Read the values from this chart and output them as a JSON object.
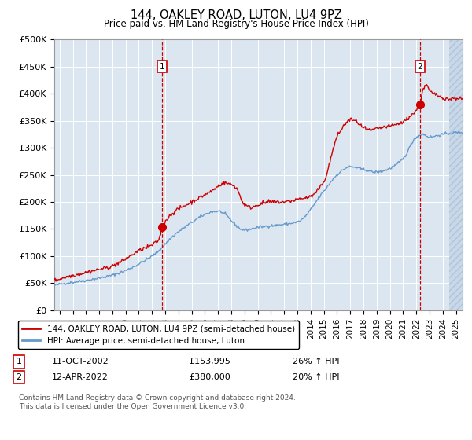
{
  "title": "144, OAKLEY ROAD, LUTON, LU4 9PZ",
  "subtitle": "Price paid vs. HM Land Registry's House Price Index (HPI)",
  "ylim": [
    0,
    500000
  ],
  "yticks": [
    0,
    50000,
    100000,
    150000,
    200000,
    250000,
    300000,
    350000,
    400000,
    450000,
    500000
  ],
  "ytick_labels": [
    "£0",
    "£50K",
    "£100K",
    "£150K",
    "£200K",
    "£250K",
    "£300K",
    "£350K",
    "£400K",
    "£450K",
    "£500K"
  ],
  "xlim_start": 1994.6,
  "xlim_end": 2025.5,
  "xtick_years": [
    1995,
    1996,
    1997,
    1998,
    1999,
    2000,
    2001,
    2002,
    2003,
    2004,
    2005,
    2006,
    2007,
    2008,
    2009,
    2010,
    2011,
    2012,
    2013,
    2014,
    2015,
    2016,
    2017,
    2018,
    2019,
    2020,
    2021,
    2022,
    2023,
    2024,
    2025
  ],
  "sale1_x": 2002.78,
  "sale1_y": 153995,
  "sale1_label": "1",
  "sale2_x": 2022.28,
  "sale2_y": 380000,
  "sale2_label": "2",
  "property_color": "#cc0000",
  "hpi_color": "#6699cc",
  "bg_color": "#dce6f1",
  "grid_color": "#ffffff",
  "legend_line1": "144, OAKLEY ROAD, LUTON, LU4 9PZ (semi-detached house)",
  "legend_line2": "HPI: Average price, semi-detached house, Luton",
  "annotation1_date": "11-OCT-2002",
  "annotation1_price": "£153,995",
  "annotation1_hpi": "26% ↑ HPI",
  "annotation2_date": "12-APR-2022",
  "annotation2_price": "£380,000",
  "annotation2_hpi": "20% ↑ HPI",
  "footnote": "Contains HM Land Registry data © Crown copyright and database right 2024.\nThis data is licensed under the Open Government Licence v3.0.",
  "hatch_start": 2024.5
}
